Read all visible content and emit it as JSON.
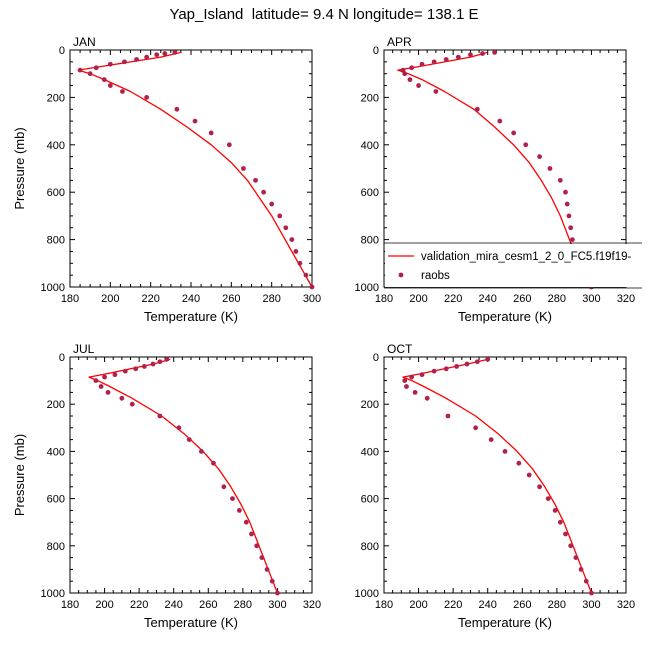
{
  "title": "Yap_Island  latitude= 9.4 N longitude= 138.1 E",
  "colors": {
    "model_line": "#ff0000",
    "obs_marker": "#b0224d",
    "axis": "#000000"
  },
  "legend": {
    "entries": [
      {
        "label": "validation_mira_cesm1_2_0_FC5.f19f19-",
        "kind": "line",
        "color": "#ff0000"
      },
      {
        "label": "raobs",
        "kind": "marker",
        "color": "#b0224d"
      }
    ],
    "placement": "lower-right of APR panel"
  },
  "chart_data": [
    {
      "type": "line",
      "panel": "JAN",
      "title": "JAN",
      "xlabel": "Temperature (K)",
      "ylabel": "Pressure (mb)",
      "xlim": [
        180,
        300
      ],
      "ylim": [
        1000,
        0
      ],
      "xticks": [
        180,
        200,
        220,
        240,
        260,
        280,
        300
      ],
      "yticks": [
        0,
        200,
        400,
        600,
        800,
        1000
      ],
      "series": [
        {
          "name": "validation_mira_cesm1_2_0_FC5.f19f19-",
          "kind": "line",
          "x": [
            300,
            295,
            290,
            285,
            280,
            274,
            268,
            260,
            250,
            238,
            225,
            210,
            197,
            190,
            184,
            195,
            210,
            225,
            235
          ],
          "y": [
            1000,
            925,
            850,
            775,
            700,
            625,
            550,
            475,
            400,
            325,
            250,
            175,
            125,
            100,
            85,
            70,
            50,
            30,
            10
          ]
        },
        {
          "name": "raobs",
          "kind": "marker",
          "x": [
            300,
            297,
            294,
            292,
            290,
            287,
            284,
            280,
            276,
            272,
            266,
            259,
            250,
            242,
            233,
            218,
            206,
            200,
            197,
            190,
            185,
            193,
            200,
            207,
            213,
            218,
            223,
            227,
            232
          ],
          "y": [
            1000,
            950,
            900,
            850,
            800,
            750,
            700,
            650,
            600,
            550,
            500,
            400,
            350,
            300,
            250,
            200,
            175,
            150,
            125,
            100,
            85,
            75,
            60,
            50,
            40,
            30,
            20,
            15,
            10
          ]
        }
      ]
    },
    {
      "type": "line",
      "panel": "APR",
      "title": "APR",
      "xlabel": "Temperature (K)",
      "ylabel": "",
      "xlim": [
        180,
        320
      ],
      "ylim": [
        1000,
        0
      ],
      "xticks": [
        180,
        200,
        220,
        240,
        260,
        280,
        300,
        320
      ],
      "yticks": [
        0,
        200,
        400,
        600,
        800,
        1000
      ],
      "series": [
        {
          "name": "validation_mira_cesm1_2_0_FC5.f19f19-",
          "kind": "line",
          "x": [
            300,
            295,
            290,
            286,
            282,
            277,
            271,
            264,
            255,
            244,
            232,
            215,
            202,
            194,
            188,
            200,
            215,
            230,
            240
          ],
          "y": [
            1000,
            925,
            850,
            775,
            700,
            625,
            550,
            475,
            400,
            325,
            250,
            175,
            125,
            100,
            85,
            70,
            50,
            30,
            10
          ]
        },
        {
          "name": "raobs",
          "kind": "marker",
          "x": [
            300,
            296,
            292,
            290,
            289,
            288,
            287,
            286,
            285,
            282,
            276,
            270,
            262,
            255,
            247,
            234,
            210,
            200,
            195,
            192,
            191,
            196,
            202,
            209,
            216,
            223,
            230,
            237,
            244
          ],
          "y": [
            1000,
            950,
            900,
            850,
            800,
            750,
            700,
            650,
            600,
            550,
            500,
            450,
            400,
            350,
            300,
            250,
            175,
            150,
            125,
            100,
            85,
            75,
            60,
            50,
            40,
            30,
            20,
            15,
            10
          ]
        }
      ]
    },
    {
      "type": "line",
      "panel": "JUL",
      "title": "JUL",
      "xlabel": "Temperature (K)",
      "ylabel": "Pressure (mb)",
      "xlim": [
        180,
        320
      ],
      "ylim": [
        1000,
        0
      ],
      "xticks": [
        180,
        200,
        220,
        240,
        260,
        280,
        300,
        320
      ],
      "yticks": [
        0,
        200,
        400,
        600,
        800,
        1000
      ],
      "series": [
        {
          "name": "validation_mira_cesm1_2_0_FC5.f19f19-",
          "kind": "line",
          "x": [
            300,
            296,
            292,
            288,
            284,
            279,
            273,
            266,
            257,
            246,
            233,
            216,
            203,
            196,
            191,
            202,
            215,
            228,
            238
          ],
          "y": [
            1000,
            925,
            850,
            775,
            700,
            625,
            550,
            475,
            400,
            325,
            250,
            175,
            125,
            100,
            85,
            70,
            50,
            30,
            10
          ]
        },
        {
          "name": "raobs",
          "kind": "marker",
          "x": [
            300,
            297,
            294,
            291,
            288,
            285,
            282,
            278,
            274,
            269,
            263,
            256,
            249,
            243,
            232,
            216,
            210,
            202,
            198,
            195,
            200,
            206,
            212,
            218,
            223,
            228,
            232,
            236
          ],
          "y": [
            1000,
            950,
            900,
            850,
            800,
            750,
            700,
            650,
            600,
            550,
            450,
            400,
            350,
            300,
            250,
            200,
            175,
            150,
            125,
            100,
            85,
            75,
            60,
            50,
            40,
            30,
            20,
            10
          ]
        }
      ]
    },
    {
      "type": "line",
      "panel": "OCT",
      "title": "OCT",
      "xlabel": "Temperature (K)",
      "ylabel": "",
      "xlim": [
        180,
        320
      ],
      "ylim": [
        1000,
        0
      ],
      "xticks": [
        180,
        200,
        220,
        240,
        260,
        280,
        300,
        320
      ],
      "yticks": [
        0,
        200,
        400,
        600,
        800,
        1000
      ],
      "series": [
        {
          "name": "validation_mira_cesm1_2_0_FC5.f19f19-",
          "kind": "line",
          "x": [
            300,
            296,
            292,
            288,
            284,
            279,
            273,
            266,
            257,
            246,
            233,
            216,
            203,
            196,
            191,
            202,
            215,
            228,
            240
          ],
          "y": [
            1000,
            925,
            850,
            775,
            700,
            625,
            550,
            475,
            400,
            325,
            250,
            175,
            125,
            100,
            85,
            70,
            50,
            30,
            10
          ]
        },
        {
          "name": "raobs",
          "kind": "marker",
          "x": [
            300,
            297,
            294,
            291,
            288,
            285,
            282,
            279,
            275,
            270,
            264,
            258,
            250,
            242,
            233,
            217,
            205,
            198,
            193,
            192,
            196,
            202,
            209,
            216,
            222,
            228,
            234,
            240
          ],
          "y": [
            1000,
            950,
            900,
            850,
            800,
            750,
            700,
            650,
            600,
            550,
            500,
            450,
            400,
            350,
            300,
            250,
            175,
            150,
            125,
            100,
            85,
            75,
            60,
            50,
            40,
            30,
            20,
            10
          ]
        }
      ]
    }
  ]
}
